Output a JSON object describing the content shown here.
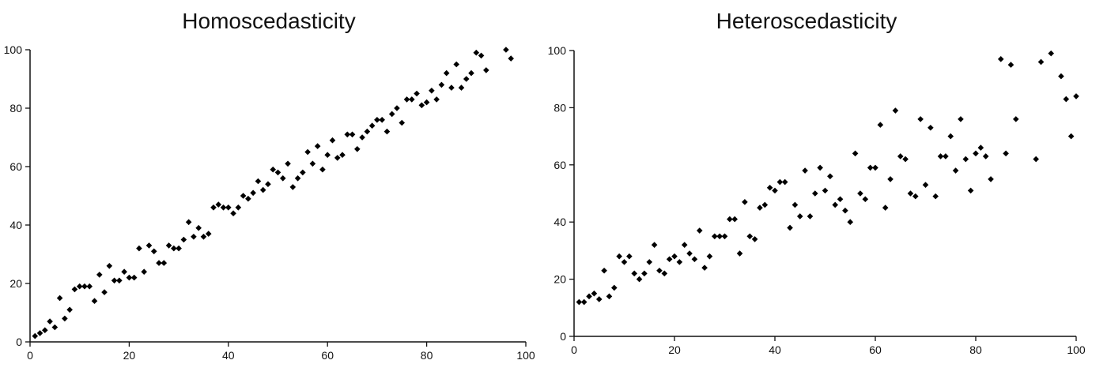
{
  "chart_data": [
    {
      "type": "scatter",
      "title": "Homoscedasticity",
      "xlabel": "",
      "ylabel": "",
      "xlim": [
        0,
        100
      ],
      "ylim": [
        0,
        100
      ],
      "xticks": [
        0,
        20,
        40,
        60,
        80,
        100
      ],
      "yticks": [
        0,
        20,
        40,
        60,
        80,
        100
      ],
      "grid": false,
      "color": "#000000",
      "points": [
        [
          1,
          2
        ],
        [
          2,
          3
        ],
        [
          3,
          4
        ],
        [
          4,
          7
        ],
        [
          5,
          5
        ],
        [
          6,
          15
        ],
        [
          7,
          8
        ],
        [
          8,
          11
        ],
        [
          9,
          18
        ],
        [
          10,
          19
        ],
        [
          11,
          19
        ],
        [
          12,
          19
        ],
        [
          13,
          14
        ],
        [
          14,
          23
        ],
        [
          15,
          17
        ],
        [
          16,
          26
        ],
        [
          17,
          21
        ],
        [
          18,
          21
        ],
        [
          19,
          24
        ],
        [
          20,
          22
        ],
        [
          21,
          22
        ],
        [
          22,
          32
        ],
        [
          23,
          24
        ],
        [
          24,
          33
        ],
        [
          25,
          31
        ],
        [
          26,
          27
        ],
        [
          27,
          27
        ],
        [
          28,
          33
        ],
        [
          29,
          32
        ],
        [
          30,
          32
        ],
        [
          31,
          35
        ],
        [
          32,
          41
        ],
        [
          33,
          36
        ],
        [
          34,
          39
        ],
        [
          35,
          36
        ],
        [
          36,
          37
        ],
        [
          37,
          46
        ],
        [
          38,
          47
        ],
        [
          39,
          46
        ],
        [
          40,
          46
        ],
        [
          41,
          44
        ],
        [
          42,
          46
        ],
        [
          43,
          50
        ],
        [
          44,
          49
        ],
        [
          45,
          51
        ],
        [
          46,
          55
        ],
        [
          47,
          52
        ],
        [
          48,
          54
        ],
        [
          49,
          59
        ],
        [
          50,
          58
        ],
        [
          51,
          56
        ],
        [
          52,
          61
        ],
        [
          53,
          53
        ],
        [
          54,
          56
        ],
        [
          55,
          58
        ],
        [
          56,
          65
        ],
        [
          57,
          61
        ],
        [
          58,
          67
        ],
        [
          59,
          59
        ],
        [
          60,
          64
        ],
        [
          61,
          69
        ],
        [
          62,
          63
        ],
        [
          63,
          64
        ],
        [
          64,
          71
        ],
        [
          65,
          71
        ],
        [
          66,
          66
        ],
        [
          67,
          70
        ],
        [
          68,
          72
        ],
        [
          69,
          74
        ],
        [
          70,
          76
        ],
        [
          71,
          76
        ],
        [
          72,
          72
        ],
        [
          73,
          78
        ],
        [
          74,
          80
        ],
        [
          75,
          75
        ],
        [
          76,
          83
        ],
        [
          77,
          83
        ],
        [
          78,
          85
        ],
        [
          79,
          81
        ],
        [
          80,
          82
        ],
        [
          81,
          86
        ],
        [
          82,
          83
        ],
        [
          83,
          88
        ],
        [
          84,
          92
        ],
        [
          85,
          87
        ],
        [
          86,
          95
        ],
        [
          87,
          87
        ],
        [
          88,
          90
        ],
        [
          89,
          92
        ],
        [
          90,
          99
        ],
        [
          91,
          98
        ],
        [
          92,
          93
        ],
        [
          96,
          100
        ],
        [
          97,
          97
        ]
      ]
    },
    {
      "type": "scatter",
      "title": "Heteroscedasticity",
      "xlabel": "",
      "ylabel": "",
      "xlim": [
        0,
        100
      ],
      "ylim": [
        0,
        100
      ],
      "xticks": [
        0,
        20,
        40,
        60,
        80,
        100
      ],
      "yticks": [
        0,
        20,
        40,
        60,
        80,
        100
      ],
      "grid": false,
      "color": "#000000",
      "points": [
        [
          1,
          12
        ],
        [
          2,
          12
        ],
        [
          3,
          14
        ],
        [
          4,
          15
        ],
        [
          5,
          13
        ],
        [
          6,
          23
        ],
        [
          7,
          14
        ],
        [
          8,
          17
        ],
        [
          9,
          28
        ],
        [
          10,
          26
        ],
        [
          11,
          28
        ],
        [
          12,
          22
        ],
        [
          13,
          20
        ],
        [
          14,
          22
        ],
        [
          15,
          26
        ],
        [
          16,
          32
        ],
        [
          17,
          23
        ],
        [
          18,
          22
        ],
        [
          19,
          27
        ],
        [
          20,
          28
        ],
        [
          21,
          26
        ],
        [
          22,
          32
        ],
        [
          23,
          29
        ],
        [
          24,
          27
        ],
        [
          25,
          37
        ],
        [
          26,
          24
        ],
        [
          27,
          28
        ],
        [
          28,
          35
        ],
        [
          29,
          35
        ],
        [
          30,
          35
        ],
        [
          31,
          41
        ],
        [
          32,
          41
        ],
        [
          33,
          29
        ],
        [
          34,
          47
        ],
        [
          35,
          35
        ],
        [
          36,
          34
        ],
        [
          37,
          45
        ],
        [
          38,
          46
        ],
        [
          39,
          52
        ],
        [
          40,
          51
        ],
        [
          41,
          54
        ],
        [
          42,
          54
        ],
        [
          43,
          38
        ],
        [
          44,
          46
        ],
        [
          45,
          42
        ],
        [
          46,
          58
        ],
        [
          47,
          42
        ],
        [
          48,
          50
        ],
        [
          49,
          59
        ],
        [
          50,
          51
        ],
        [
          51,
          56
        ],
        [
          52,
          46
        ],
        [
          53,
          48
        ],
        [
          54,
          44
        ],
        [
          55,
          40
        ],
        [
          56,
          64
        ],
        [
          57,
          50
        ],
        [
          58,
          48
        ],
        [
          59,
          59
        ],
        [
          60,
          59
        ],
        [
          61,
          74
        ],
        [
          62,
          45
        ],
        [
          63,
          55
        ],
        [
          64,
          79
        ],
        [
          65,
          63
        ],
        [
          66,
          62
        ],
        [
          67,
          50
        ],
        [
          68,
          49
        ],
        [
          69,
          76
        ],
        [
          70,
          53
        ],
        [
          71,
          73
        ],
        [
          72,
          49
        ],
        [
          73,
          63
        ],
        [
          74,
          63
        ],
        [
          75,
          70
        ],
        [
          76,
          58
        ],
        [
          77,
          76
        ],
        [
          78,
          62
        ],
        [
          79,
          51
        ],
        [
          80,
          64
        ],
        [
          81,
          66
        ],
        [
          82,
          63
        ],
        [
          83,
          55
        ],
        [
          85,
          97
        ],
        [
          86,
          64
        ],
        [
          87,
          95
        ],
        [
          88,
          76
        ],
        [
          92,
          62
        ],
        [
          93,
          96
        ],
        [
          95,
          99
        ],
        [
          97,
          91
        ],
        [
          98,
          83
        ],
        [
          99,
          70
        ],
        [
          100,
          84
        ]
      ]
    }
  ]
}
